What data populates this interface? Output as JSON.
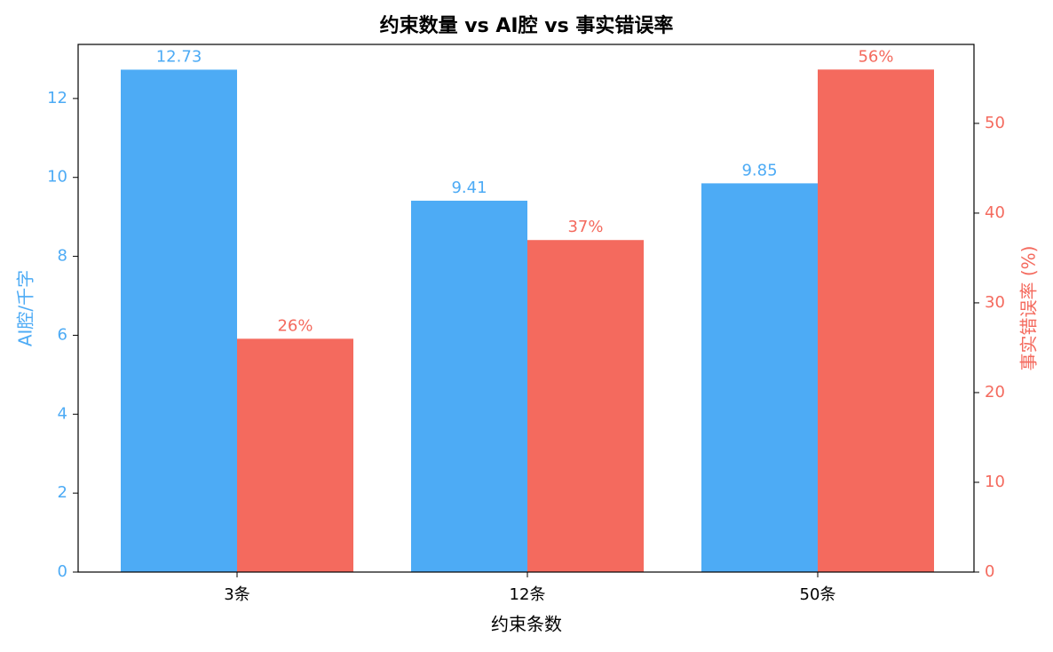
{
  "chart_data": {
    "type": "bar",
    "title": "约束数量 vs AI腔 vs 事实错误率",
    "xlabel": "约束条数",
    "ylabel": "AI腔/千字",
    "y2label": "事实错误率 (%)",
    "categories": [
      "3条",
      "12条",
      "50条"
    ],
    "series": [
      {
        "color": "#4dabf5",
        "values": [
          12.73,
          9.41,
          9.85
        ]
      },
      {
        "color": "#f46a5e",
        "axis": "y2",
        "values": [
          26,
          37,
          56
        ],
        "value_labels": [
          "26%",
          "37%",
          "56%"
        ]
      }
    ],
    "ylim": [
      0,
      13.37
    ],
    "yticks": [
      0,
      2,
      4,
      6,
      8,
      10,
      12
    ],
    "y2lim": [
      0,
      58.8
    ],
    "y2ticks": [
      0,
      10,
      20,
      30,
      40,
      50
    ]
  }
}
